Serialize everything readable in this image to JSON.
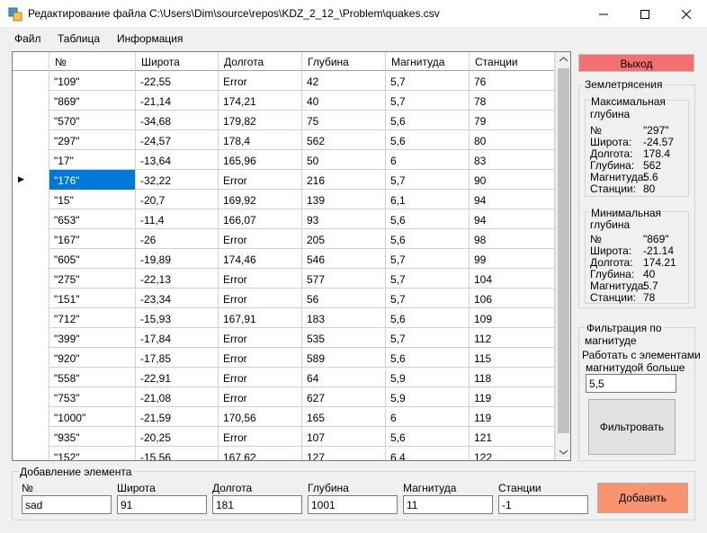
{
  "window": {
    "title": "Редактирование файла C:\\Users\\Dim\\source\\repos\\KDZ_2_12_\\Problem\\quakes.csv"
  },
  "menu": [
    "Файл",
    "Таблица",
    "Информация"
  ],
  "grid": {
    "columns": [
      "№",
      "Широта",
      "Долгота",
      "Глубина",
      "Магнитуда",
      "Станции"
    ],
    "rows": [
      [
        "\"109\"",
        "-22,55",
        "Error",
        "42",
        "5,7",
        "76"
      ],
      [
        "\"869\"",
        "-21,14",
        "174,21",
        "40",
        "5,7",
        "78"
      ],
      [
        "\"570\"",
        "-34,68",
        "179,82",
        "75",
        "5,6",
        "79"
      ],
      [
        "\"297\"",
        "-24,57",
        "178,4",
        "562",
        "5,6",
        "80"
      ],
      [
        "\"17\"",
        "-13,64",
        "165,96",
        "50",
        "6",
        "83"
      ],
      [
        "\"176\"",
        "-32,22",
        "Error",
        "216",
        "5,7",
        "90"
      ],
      [
        "\"15\"",
        "-20,7",
        "169,92",
        "139",
        "6,1",
        "94"
      ],
      [
        "\"653\"",
        "-11,4",
        "166,07",
        "93",
        "5,6",
        "94"
      ],
      [
        "\"167\"",
        "-26",
        "Error",
        "205",
        "5,6",
        "98"
      ],
      [
        "\"605\"",
        "-19,89",
        "174,46",
        "546",
        "5,7",
        "99"
      ],
      [
        "\"275\"",
        "-22,13",
        "Error",
        "577",
        "5,7",
        "104"
      ],
      [
        "\"151\"",
        "-23,34",
        "Error",
        "56",
        "5,7",
        "106"
      ],
      [
        "\"712\"",
        "-15,93",
        "167,91",
        "183",
        "5,6",
        "109"
      ],
      [
        "\"399\"",
        "-17,84",
        "Error",
        "535",
        "5,7",
        "112"
      ],
      [
        "\"920\"",
        "-17,85",
        "Error",
        "589",
        "5,6",
        "115"
      ],
      [
        "\"558\"",
        "-22,91",
        "Error",
        "64",
        "5,9",
        "118"
      ],
      [
        "\"753\"",
        "-21,08",
        "Error",
        "627",
        "5,9",
        "119"
      ],
      [
        "\"1000\"",
        "-21,59",
        "170,56",
        "165",
        "6",
        "119"
      ],
      [
        "\"935\"",
        "-20,25",
        "Error",
        "107",
        "5,6",
        "121"
      ],
      [
        "\"152\"",
        "-15,56",
        "167,62",
        "127",
        "6,4",
        "122"
      ]
    ],
    "selected_row": 5,
    "current_row_marker": "▶"
  },
  "exit_button": "Выход",
  "quakes": {
    "title": "Землетрясения",
    "max": {
      "title_line1": "Максимальная",
      "title_line2": "глубина",
      "labels": [
        "№",
        "Широта:",
        "Долгота:",
        "Глубина:",
        "Магнитуда:",
        "Станции:"
      ],
      "values": [
        "\"297\"",
        "-24.57",
        "178.4",
        "562",
        "5.6",
        "80"
      ]
    },
    "min": {
      "title_line1": "Минимальная",
      "title_line2": "глубина",
      "labels": [
        "№",
        "Широта:",
        "Долгота:",
        "Глубина:",
        "Магнитуда:",
        "Станции:"
      ],
      "values": [
        "\"869\"",
        "-21.14",
        "174.21",
        "40",
        "5.7",
        "78"
      ]
    }
  },
  "filter": {
    "title_line1": "Фильтрация по",
    "title_line2": "магнитуде",
    "caption_line1": "Работать с элементами",
    "caption_line2": "магнитудой больше",
    "value": "5,5",
    "button": "Фильтровать"
  },
  "add": {
    "title": "Добавление элемента",
    "fields": [
      {
        "label": "№",
        "value": "sad"
      },
      {
        "label": "Широта",
        "value": "91"
      },
      {
        "label": "Долгота",
        "value": "181"
      },
      {
        "label": "Глубина",
        "value": "1001"
      },
      {
        "label": "Магнитуда",
        "value": "11"
      },
      {
        "label": "Станции",
        "value": "-1"
      }
    ],
    "button": "Добавить"
  },
  "colors": {
    "exit_button": "#f37070",
    "add_button": "#f99471",
    "selection": "#0078d7"
  }
}
